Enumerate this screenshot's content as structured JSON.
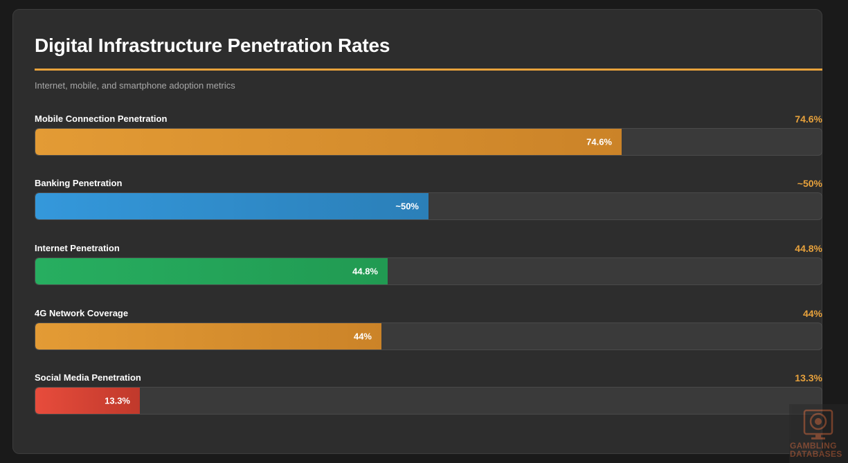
{
  "title": "Digital Infrastructure Penetration Rates",
  "subtitle": "Internet, mobile, and smartphone adoption metrics",
  "colors": {
    "accent": "#e8a23c",
    "background": "#1a1a1a",
    "card": "#2d2d2d",
    "track": "#3a3a3a"
  },
  "chart_data": {
    "type": "bar",
    "orientation": "horizontal",
    "xlim": [
      0,
      100
    ],
    "categories": [
      "Mobile Connection Penetration",
      "Banking Penetration",
      "Internet Penetration",
      "4G Network Coverage",
      "Social Media Penetration"
    ],
    "values": [
      74.6,
      50,
      44.8,
      44,
      13.3
    ],
    "value_labels": [
      "74.6%",
      "~50%",
      "44.8%",
      "44%",
      "13.3%"
    ],
    "bar_colors": [
      [
        "#e39b35",
        "#cb8328"
      ],
      [
        "#3498db",
        "#2b7fb8"
      ],
      [
        "#27ae60",
        "#219a52"
      ],
      [
        "#e39b35",
        "#cb8328"
      ],
      [
        "#e74c3c",
        "#c0392b"
      ]
    ],
    "value_color": "#e8a23c",
    "unit": "%"
  },
  "watermark": {
    "icon": "poker-chip-icon",
    "line1": "GAMBLING",
    "line2": "DATABASES"
  }
}
